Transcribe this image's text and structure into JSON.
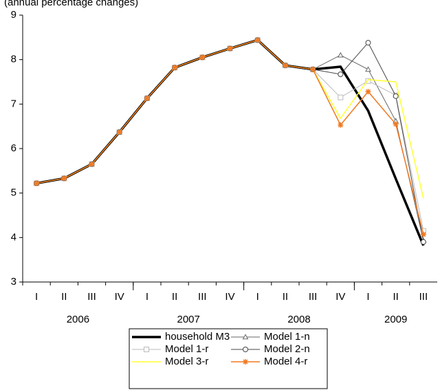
{
  "chart_data": {
    "type": "line",
    "subtitle": "(annual percentage changes)",
    "categories": [
      "I",
      "II",
      "III",
      "IV",
      "I",
      "II",
      "III",
      "IV",
      "I",
      "II",
      "III",
      "IV",
      "I",
      "II",
      "III"
    ],
    "years": [
      "2006",
      "2007",
      "2008",
      "2009"
    ],
    "ylim": [
      3,
      9
    ],
    "yticks": [
      3,
      4,
      5,
      6,
      7,
      8,
      9
    ],
    "series": [
      {
        "name": "household M3",
        "color": "#000000",
        "marker": "none",
        "width": 3.5,
        "values": [
          5.22,
          5.33,
          5.65,
          6.37,
          7.13,
          7.82,
          8.05,
          8.25,
          8.44,
          7.87,
          7.78,
          7.84,
          6.85,
          5.32,
          3.82
        ]
      },
      {
        "name": "Model 1-n",
        "color": "#666666",
        "marker": "triangle",
        "width": 1,
        "values": [
          5.22,
          5.33,
          5.65,
          6.37,
          7.13,
          7.82,
          8.05,
          8.25,
          8.44,
          7.87,
          7.78,
          8.1,
          7.78,
          6.62,
          3.93
        ]
      },
      {
        "name": "Model 1-r",
        "color": "#bbbbbb",
        "marker": "square",
        "width": 1,
        "values": [
          5.22,
          5.33,
          5.65,
          6.37,
          7.13,
          7.82,
          8.05,
          8.25,
          8.44,
          7.87,
          7.78,
          7.15,
          7.52,
          7.2,
          4.15
        ]
      },
      {
        "name": "Model 2-n",
        "color": "#444444",
        "marker": "circle",
        "width": 1,
        "values": [
          5.22,
          5.33,
          5.65,
          6.37,
          7.13,
          7.82,
          8.05,
          8.25,
          8.44,
          7.87,
          7.78,
          7.67,
          8.38,
          7.18,
          3.9
        ]
      },
      {
        "name": "Model 3-r",
        "color": "#ffff33",
        "marker": "none",
        "width": 1.5,
        "values": [
          5.22,
          5.33,
          5.65,
          6.37,
          7.13,
          7.82,
          8.05,
          8.25,
          8.44,
          7.87,
          7.78,
          6.68,
          7.55,
          7.5,
          4.88
        ]
      },
      {
        "name": "Model 4-r",
        "color": "#f07820",
        "marker": "star",
        "width": 1.5,
        "values": [
          5.22,
          5.33,
          5.65,
          6.37,
          7.13,
          7.82,
          8.05,
          8.25,
          8.44,
          7.87,
          7.78,
          6.53,
          7.28,
          6.55,
          4.07
        ]
      }
    ]
  }
}
